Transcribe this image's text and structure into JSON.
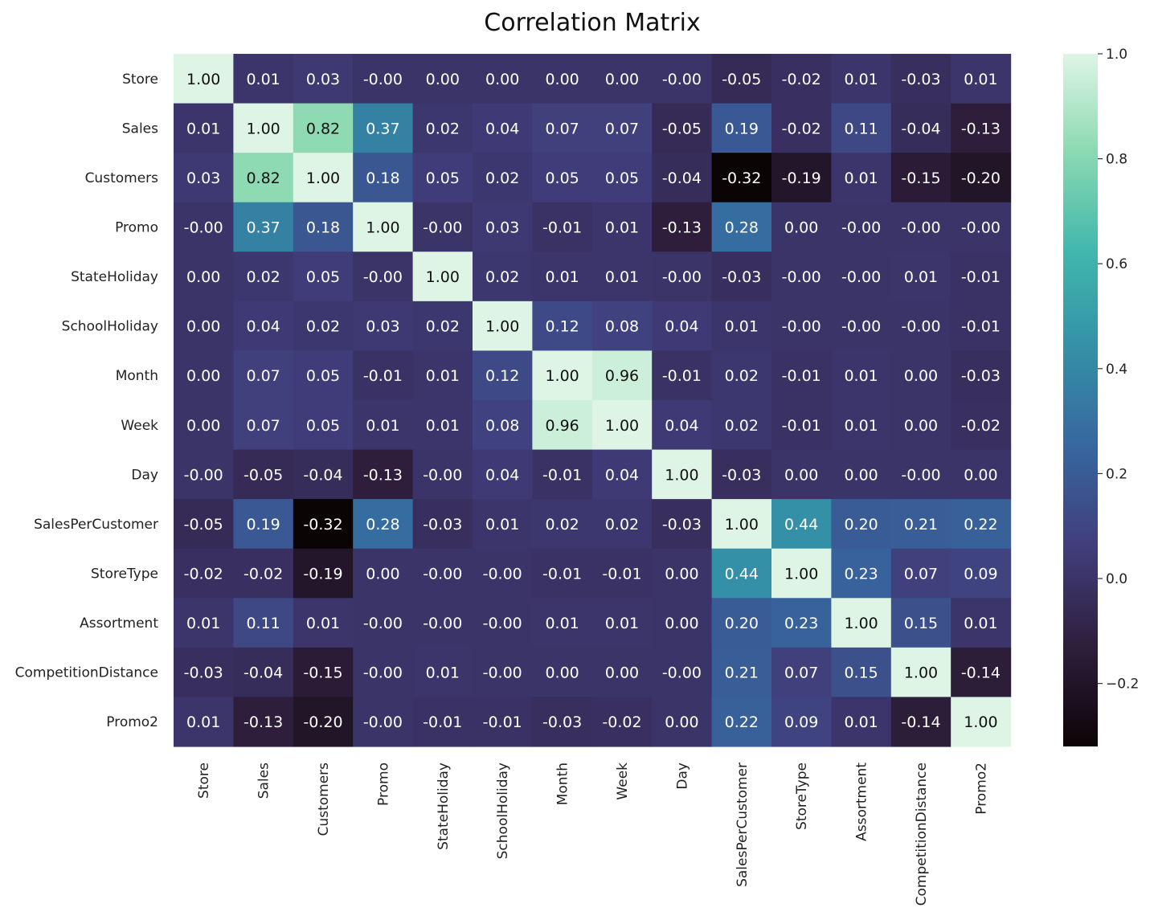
{
  "chart_data": {
    "type": "heatmap",
    "title": "Correlation Matrix",
    "rows": [
      "Store",
      "Sales",
      "Customers",
      "Promo",
      "StateHoliday",
      "SchoolHoliday",
      "Month",
      "Week",
      "Day",
      "SalesPerCustomer",
      "StoreType",
      "Assortment",
      "CompetitionDistance",
      "Promo2"
    ],
    "columns": [
      "Store",
      "Sales",
      "Customers",
      "Promo",
      "StateHoliday",
      "SchoolHoliday",
      "Month",
      "Week",
      "Day",
      "SalesPerCustomer",
      "StoreType",
      "Assortment",
      "CompetitionDistance",
      "Promo2"
    ],
    "labels": [
      [
        "1.00",
        "0.01",
        "0.03",
        "-0.00",
        "0.00",
        "0.00",
        "0.00",
        "0.00",
        "-0.00",
        "-0.05",
        "-0.02",
        "0.01",
        "-0.03",
        "0.01"
      ],
      [
        "0.01",
        "1.00",
        "0.82",
        "0.37",
        "0.02",
        "0.04",
        "0.07",
        "0.07",
        "-0.05",
        "0.19",
        "-0.02",
        "0.11",
        "-0.04",
        "-0.13"
      ],
      [
        "0.03",
        "0.82",
        "1.00",
        "0.18",
        "0.05",
        "0.02",
        "0.05",
        "0.05",
        "-0.04",
        "-0.32",
        "-0.19",
        "0.01",
        "-0.15",
        "-0.20"
      ],
      [
        "-0.00",
        "0.37",
        "0.18",
        "1.00",
        "-0.00",
        "0.03",
        "-0.01",
        "0.01",
        "-0.13",
        "0.28",
        "0.00",
        "-0.00",
        "-0.00",
        "-0.00"
      ],
      [
        "0.00",
        "0.02",
        "0.05",
        "-0.00",
        "1.00",
        "0.02",
        "0.01",
        "0.01",
        "-0.00",
        "-0.03",
        "-0.00",
        "-0.00",
        "0.01",
        "-0.01"
      ],
      [
        "0.00",
        "0.04",
        "0.02",
        "0.03",
        "0.02",
        "1.00",
        "0.12",
        "0.08",
        "0.04",
        "0.01",
        "-0.00",
        "-0.00",
        "-0.00",
        "-0.01"
      ],
      [
        "0.00",
        "0.07",
        "0.05",
        "-0.01",
        "0.01",
        "0.12",
        "1.00",
        "0.96",
        "-0.01",
        "0.02",
        "-0.01",
        "0.01",
        "0.00",
        "-0.03"
      ],
      [
        "0.00",
        "0.07",
        "0.05",
        "0.01",
        "0.01",
        "0.08",
        "0.96",
        "1.00",
        "0.04",
        "0.02",
        "-0.01",
        "0.01",
        "0.00",
        "-0.02"
      ],
      [
        "-0.00",
        "-0.05",
        "-0.04",
        "-0.13",
        "-0.00",
        "0.04",
        "-0.01",
        "0.04",
        "1.00",
        "-0.03",
        "0.00",
        "0.00",
        "-0.00",
        "0.00"
      ],
      [
        "-0.05",
        "0.19",
        "-0.32",
        "0.28",
        "-0.03",
        "0.01",
        "0.02",
        "0.02",
        "-0.03",
        "1.00",
        "0.44",
        "0.20",
        "0.21",
        "0.22"
      ],
      [
        "-0.02",
        "-0.02",
        "-0.19",
        "0.00",
        "-0.00",
        "-0.00",
        "-0.01",
        "-0.01",
        "0.00",
        "0.44",
        "1.00",
        "0.23",
        "0.07",
        "0.09"
      ],
      [
        "0.01",
        "0.11",
        "0.01",
        "-0.00",
        "-0.00",
        "-0.00",
        "0.01",
        "0.01",
        "0.00",
        "0.20",
        "0.23",
        "1.00",
        "0.15",
        "0.01"
      ],
      [
        "-0.03",
        "-0.04",
        "-0.15",
        "-0.00",
        "0.01",
        "-0.00",
        "0.00",
        "0.00",
        "-0.00",
        "0.21",
        "0.07",
        "0.15",
        "1.00",
        "-0.14"
      ],
      [
        "0.01",
        "-0.13",
        "-0.20",
        "-0.00",
        "-0.01",
        "-0.01",
        "-0.03",
        "-0.02",
        "0.00",
        "0.22",
        "0.09",
        "0.01",
        "-0.14",
        "1.00"
      ]
    ],
    "colorbar": {
      "range": [
        -0.32,
        1.0
      ],
      "ticks": [
        "1.0",
        "0.8",
        "0.6",
        "0.4",
        "0.2",
        "0.0",
        "−0.2"
      ],
      "colormap": "mako",
      "stops": [
        "#0b0405",
        "#2e1e3c",
        "#413d7b",
        "#37659e",
        "#348fa7",
        "#40b7ad",
        "#8ad9b1",
        "#def5e5"
      ]
    }
  }
}
